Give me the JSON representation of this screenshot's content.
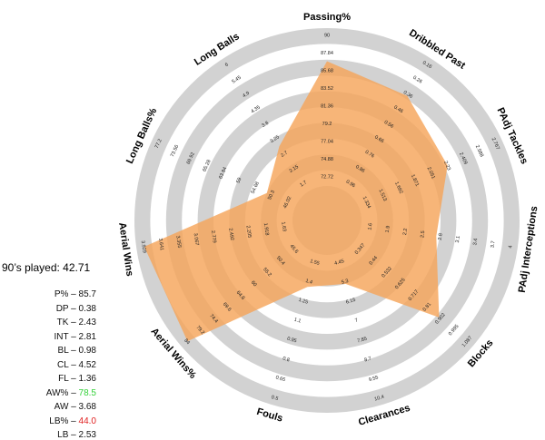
{
  "chart_data": {
    "type": "radar",
    "range_low_color": "#ff4d4d",
    "ring_color": "#d2d2d2",
    "fill_color": "#f5a55a",
    "axes": [
      {
        "label": "Passing%",
        "ticks": [
          "72.72",
          "74.88",
          "77.04",
          "79.2",
          "81.36",
          "83.52",
          "85.68",
          "87.84",
          "90"
        ],
        "value": 85.7,
        "position": 0.79
      },
      {
        "label": "Dribbled Past",
        "ticks": [
          "0.96",
          "0.86",
          "0.76",
          "0.66",
          "0.56",
          "0.46",
          "0.36",
          "0.26",
          "0.16"
        ],
        "value": 0.38,
        "position": 0.72
      },
      {
        "label": "PAdj Tackles",
        "ticks": [
          "1.334",
          "1.513",
          "1.692",
          "1.871",
          "2.051",
          "2.23",
          "2.409",
          "2.588",
          "2.767"
        ],
        "value": 2.43,
        "position": 0.62
      },
      {
        "label": "PAdj Interceptions",
        "ticks": [
          "1.6",
          "1.9",
          "2.2",
          "2.5",
          "2.8",
          "3.1",
          "3.4",
          "3.7",
          "4"
        ],
        "value": 2.81,
        "position": 0.48
      },
      {
        "label": "Blocks",
        "ticks": [
          "0.347",
          "0.44",
          "0.532",
          "0.625",
          "0.717",
          "0.81",
          "0.902",
          "0.995",
          "1.087"
        ],
        "value": 0.98,
        "position": 0.72
      },
      {
        "label": "Clearances",
        "ticks": [
          "4.45",
          "5.3",
          "6.15",
          "7",
          "7.85",
          "8.7",
          "9.55",
          "10.4"
        ],
        "value": 4.52,
        "position": 0.2
      },
      {
        "label": "Fouls",
        "ticks": [
          "1.55",
          "1.4",
          "1.25",
          "1.1",
          "0.95",
          "0.8",
          "0.65",
          "0.5"
        ],
        "value": 1.36,
        "position": 0.22
      },
      {
        "label": "Aerial Wins%",
        "ticks": [
          "45.6",
          "50.4",
          "55.2",
          "60",
          "64.8",
          "69.6",
          "74.4",
          "79.2",
          "84"
        ],
        "value": 78.5,
        "position": 0.95
      },
      {
        "label": "Aerial Wins",
        "ticks": [
          "1.63",
          "1.918",
          "2.205",
          "2.492",
          "2.779",
          "3.067",
          "3.355",
          "3.641",
          "3.929"
        ],
        "value": 3.68,
        "position": 0.95
      },
      {
        "label": "Long Balls%",
        "ticks": [
          "46.02",
          "50.3",
          "54.68",
          "59",
          "63.84",
          "65.28",
          "69.92",
          "73.56",
          "77.2"
        ],
        "value": 44.0,
        "position": 0.2
      },
      {
        "label": "Long Balls",
        "ticks": [
          "1.7",
          "2.15",
          "2.7",
          "3.25",
          "3.8",
          "4.35",
          "4.9",
          "5.45",
          "6"
        ],
        "value": 2.53,
        "position": 0.34
      }
    ]
  },
  "stats_panel": {
    "played_label": "90’s played: 42.71",
    "rows": [
      {
        "label": "P% – ",
        "value": "85.7",
        "color": "#111111"
      },
      {
        "label": "DP – ",
        "value": "0.38",
        "color": "#111111"
      },
      {
        "label": "TK – ",
        "value": "2.43",
        "color": "#111111"
      },
      {
        "label": "INT – ",
        "value": "2.81",
        "color": "#111111"
      },
      {
        "label": "BL – ",
        "value": "0.98",
        "color": "#111111"
      },
      {
        "label": "CL – ",
        "value": "4.52",
        "color": "#111111"
      },
      {
        "label": "FL – ",
        "value": "1.36",
        "color": "#111111"
      },
      {
        "label": "AW% – ",
        "value": "78.5",
        "color": "#35d13a"
      },
      {
        "label": "AW – ",
        "value": "3.68",
        "color": "#111111"
      },
      {
        "label": "LB% – ",
        "value": "44.0",
        "color": "#e02020"
      },
      {
        "label": "LB – ",
        "value": "2.53",
        "color": "#111111"
      }
    ]
  }
}
